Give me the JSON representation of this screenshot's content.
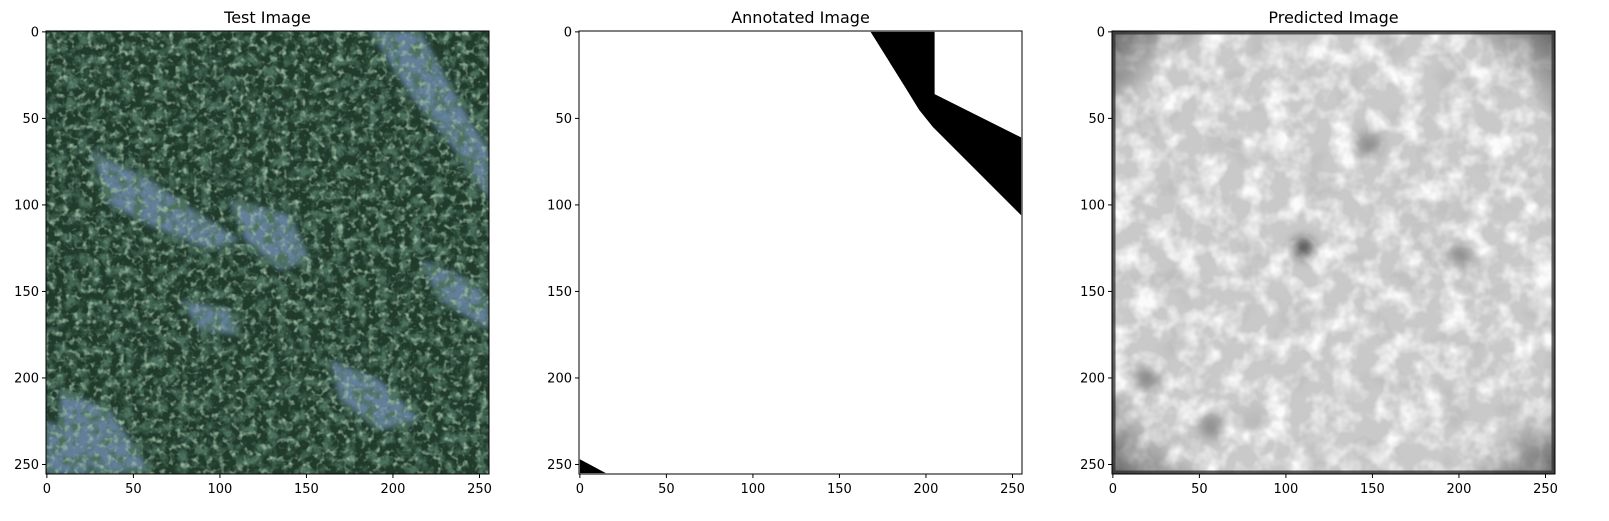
{
  "chart_data": [
    {
      "type": "image",
      "title": "Test Image",
      "image_description": "aerial RGB photo of dense conifer forest (dark green canopy) crossed by pale blue-grey clearings running diagonally from upper-right to lower-left",
      "xlim": [
        0,
        255
      ],
      "ylim": [
        255,
        0
      ],
      "y_inverted": true,
      "xticks": [
        0,
        50,
        100,
        150,
        200,
        250
      ],
      "yticks": [
        0,
        50,
        100,
        150,
        200,
        250
      ],
      "colors": {
        "canopy": "#1f3a2a",
        "canopy_light": "#3f6b4c",
        "clearing": "#6f8fb0"
      }
    },
    {
      "type": "image",
      "title": "Annotated Image",
      "image_description": "binary mask, white background with black regions near the top-right corner and a small black triangle at the bottom-left corner",
      "xlim": [
        0,
        255
      ],
      "ylim": [
        255,
        0
      ],
      "y_inverted": true,
      "xticks": [
        0,
        50,
        100,
        150,
        200,
        250
      ],
      "yticks": [
        0,
        50,
        100,
        150,
        200,
        250
      ],
      "black_regions": [
        [
          [
            168,
            0
          ],
          [
            205,
            0
          ],
          [
            205,
            36
          ],
          [
            255,
            61
          ],
          [
            255,
            106
          ],
          [
            204,
            55
          ],
          [
            196,
            45
          ],
          [
            188,
            32
          ]
        ],
        [
          [
            0,
            247
          ],
          [
            15,
            255
          ],
          [
            0,
            255
          ]
        ]
      ],
      "colors": {
        "foreground": "#000000",
        "background": "#ffffff"
      }
    },
    {
      "type": "image",
      "title": "Predicted Image",
      "image_description": "blurry grayscale prediction map, mostly light grey with mottled darker patches and a darker border",
      "xlim": [
        0,
        255
      ],
      "ylim": [
        255,
        0
      ],
      "y_inverted": true,
      "xticks": [
        0,
        50,
        100,
        150,
        200,
        250
      ],
      "yticks": [
        0,
        50,
        100,
        150,
        200,
        250
      ],
      "dark_spots": [
        [
          110,
          125
        ],
        [
          57,
          228
        ],
        [
          20,
          200
        ],
        [
          148,
          65
        ],
        [
          200,
          130
        ]
      ],
      "colors": {
        "base": "#cfcfcf",
        "light": "#ececec",
        "dark": "#606060",
        "border": "#3a3a3a"
      }
    }
  ]
}
